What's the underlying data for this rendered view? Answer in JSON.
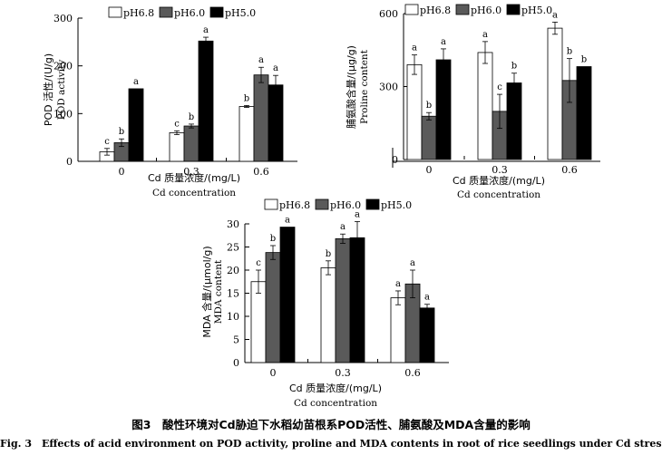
{
  "figure": {
    "caption_cn": "图3　酸性环境对Cd胁迫下水稻幼苗根系POD活性、脯氨酸及MDA含量的影响",
    "caption_en": "Fig. 3　Effects of acid environment on POD activity, proline and MDA contents in root of rice seedlings under Cd stress"
  },
  "colors": {
    "pH6.8": "#ffffff",
    "pH6.0": "#5a5a5a",
    "pH5.0": "#000000",
    "axis": "#000000"
  },
  "chart_data": [
    {
      "type": "bar",
      "categories": [
        "0",
        "0.3",
        "0.6"
      ],
      "xlabel_cn": "Cd 质量浓度/(mg/L)",
      "xlabel_en": "Cd concentration",
      "ylabel_cn": "POD 活性/(U/g)",
      "ylabel_en": "POD activity",
      "ylim": [
        0,
        300
      ],
      "yticks": [
        0,
        100,
        200,
        300
      ],
      "legend": [
        "pH6.8",
        "pH6.0",
        "pH5.0"
      ],
      "legend_position": "top",
      "series": [
        {
          "name": "pH6.8",
          "values": [
            20,
            60,
            115
          ],
          "errors": [
            7,
            4,
            2
          ],
          "letters": [
            "c",
            "c",
            "b"
          ]
        },
        {
          "name": "pH6.0",
          "values": [
            39,
            74,
            181
          ],
          "errors": [
            8,
            4,
            16
          ],
          "letters": [
            "b",
            "b",
            "a"
          ]
        },
        {
          "name": "pH5.0",
          "values": [
            152,
            252,
            160
          ],
          "errors": [
            0,
            8,
            20
          ],
          "letters": [
            "a",
            "a",
            "a"
          ]
        }
      ]
    },
    {
      "type": "bar",
      "categories": [
        "0",
        "0.3",
        "0.6"
      ],
      "xlabel_cn": "Cd 质量浓度/(mg/L)",
      "xlabel_en": "Cd concentration",
      "ylabel_cn": "脯氨酸含量/(μg/g)",
      "ylabel_en": "Proline content",
      "ylim": [
        0,
        600
      ],
      "yticks": [
        0,
        300,
        600
      ],
      "legend": [
        "pH6.8",
        "pH6.0",
        "pH5.0"
      ],
      "legend_position": "top",
      "series": [
        {
          "name": "pH6.8",
          "values": [
            390,
            440,
            540
          ],
          "errors": [
            40,
            45,
            25
          ],
          "letters": [
            "a",
            "a",
            "a"
          ]
        },
        {
          "name": "pH6.0",
          "values": [
            178,
            198,
            325
          ],
          "errors": [
            15,
            70,
            90
          ],
          "letters": [
            "b",
            "c",
            "b"
          ]
        },
        {
          "name": "pH5.0",
          "values": [
            410,
            315,
            382
          ],
          "errors": [
            45,
            40,
            0
          ],
          "letters": [
            "a",
            "b",
            "b"
          ]
        }
      ]
    },
    {
      "type": "bar",
      "categories": [
        "0",
        "0.3",
        "0.6"
      ],
      "xlabel_cn": "Cd 质量浓度/(mg/L)",
      "xlabel_en": "Cd concentration",
      "ylabel_cn": "MDA 含量/(μmol/g)",
      "ylabel_en": "MDA content",
      "ylim": [
        0,
        30
      ],
      "yticks": [
        0,
        5,
        10,
        15,
        20,
        25,
        30
      ],
      "legend": [
        "pH6.8",
        "pH6.0",
        "pH5.0"
      ],
      "legend_position": "top",
      "series": [
        {
          "name": "pH6.8",
          "values": [
            17.5,
            20.5,
            14.0
          ],
          "errors": [
            2.5,
            1.5,
            1.5
          ],
          "letters": [
            "c",
            "b",
            "a"
          ]
        },
        {
          "name": "pH6.0",
          "values": [
            23.8,
            26.8,
            17.0
          ],
          "errors": [
            1.5,
            1.0,
            3.0
          ],
          "letters": [
            "b",
            "a",
            "a"
          ]
        },
        {
          "name": "pH5.0",
          "values": [
            29.3,
            27.0,
            11.8
          ],
          "errors": [
            0,
            3.5,
            0.8
          ],
          "letters": [
            "a",
            "a",
            "a"
          ]
        }
      ]
    }
  ]
}
